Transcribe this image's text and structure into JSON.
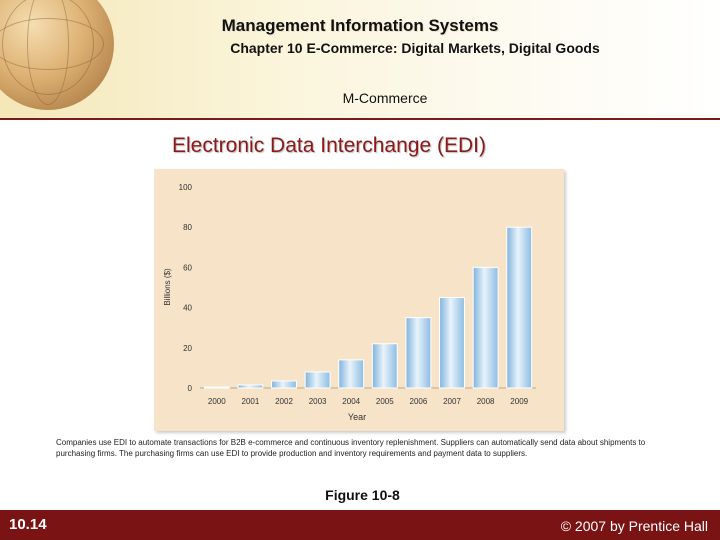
{
  "header": {
    "title": "Management Information Systems",
    "chapter": "Chapter 10 E-Commerce: Digital Markets, Digital Goods",
    "section": "M-Commerce"
  },
  "slide_title": "Electronic Data Interchange (EDI)",
  "caption": "Companies use EDI to automate transactions for B2B e-commerce and continuous inventory replenishment. Suppliers can automatically send data about shipments to purchasing firms. The purchasing firms can use EDI to provide production and inventory requirements and payment data to suppliers.",
  "figure_label": "Figure 10-8",
  "footer": {
    "slide_number": "10.14",
    "copyright": "© 2007 by Prentice Hall"
  },
  "colors": {
    "footer": "#7a1414",
    "title": "#8b1a1a",
    "chart_background": "#f6e3c8",
    "bar": "#a9cdea"
  },
  "chart_data": {
    "type": "bar",
    "categories": [
      "2000",
      "2001",
      "2002",
      "2003",
      "2004",
      "2005",
      "2006",
      "2007",
      "2008",
      "2009"
    ],
    "values": [
      0.5,
      1.5,
      3.5,
      8,
      14,
      22,
      35,
      45,
      60,
      80
    ],
    "xlabel": "Year",
    "ylabel": "Billions ($)",
    "ylim": [
      0,
      100
    ],
    "yticks": [
      0,
      20,
      40,
      60,
      80,
      100
    ],
    "grid": false
  }
}
